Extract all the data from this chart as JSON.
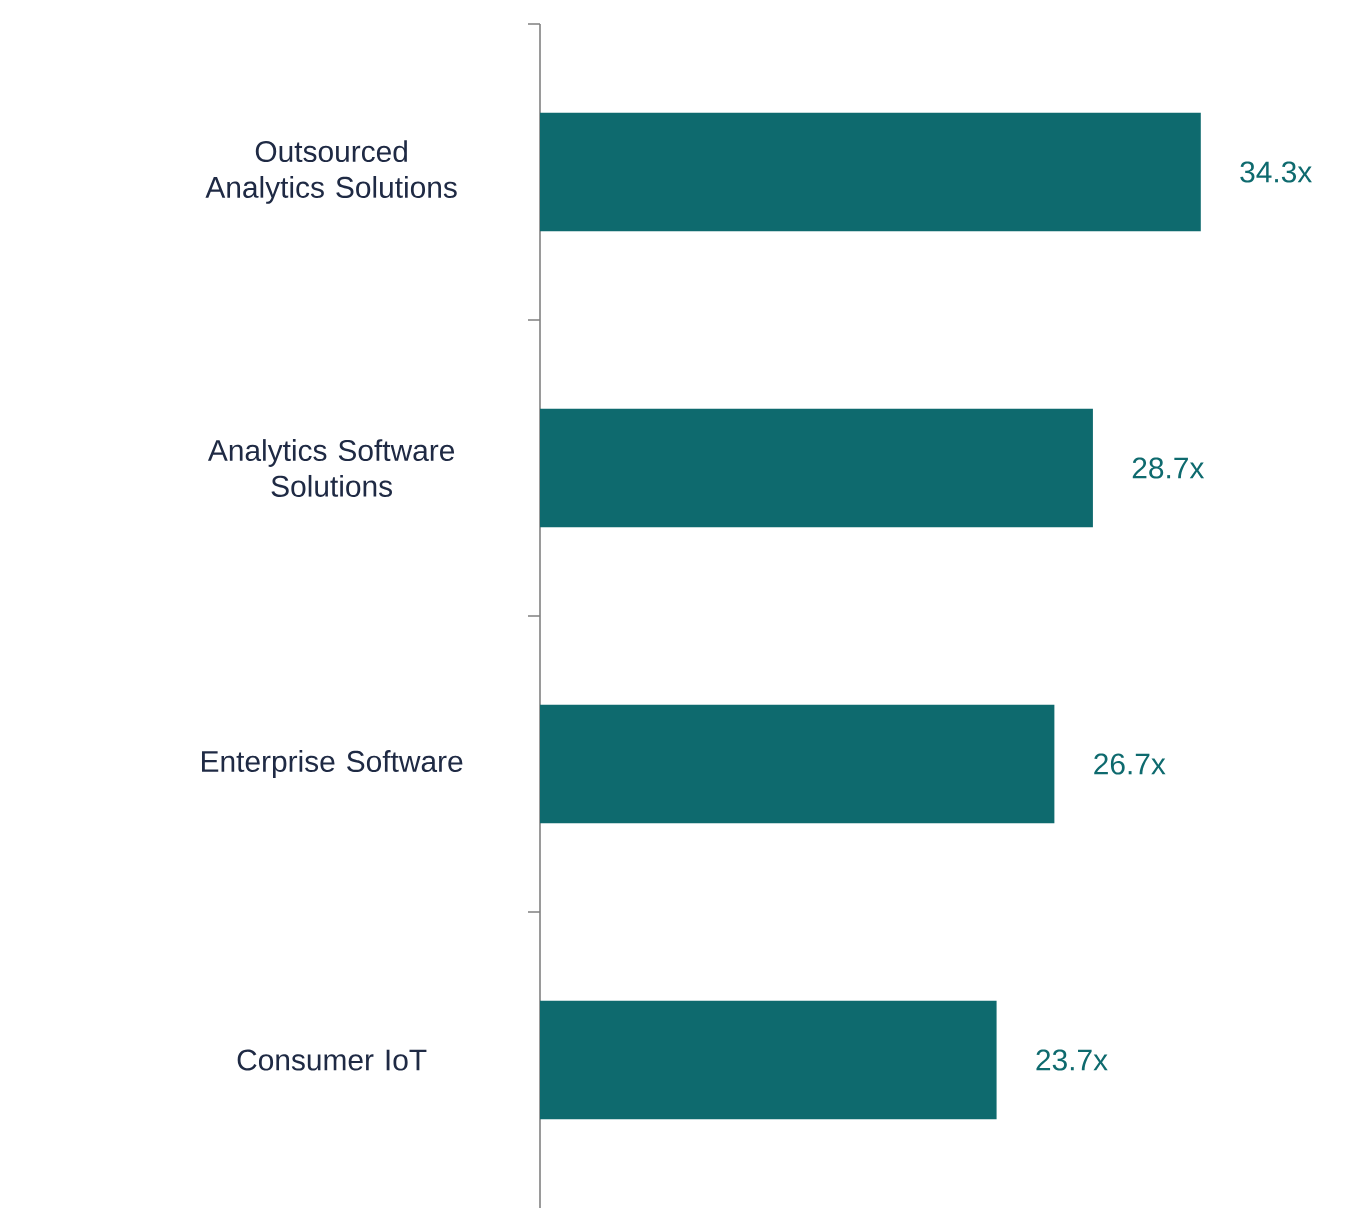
{
  "chart_data": {
    "type": "bar",
    "orientation": "horizontal",
    "categories": [
      "Outsourced Analytics Solutions",
      "Analytics Software Solutions",
      "Enterprise Software",
      "Consumer IoT"
    ],
    "values": [
      34.3,
      28.7,
      26.7,
      23.7
    ],
    "color": "#0e6a6e",
    "value_labels": [
      "34.3x",
      "28.7x",
      "26.7x",
      "23.7x"
    ]
  }
}
